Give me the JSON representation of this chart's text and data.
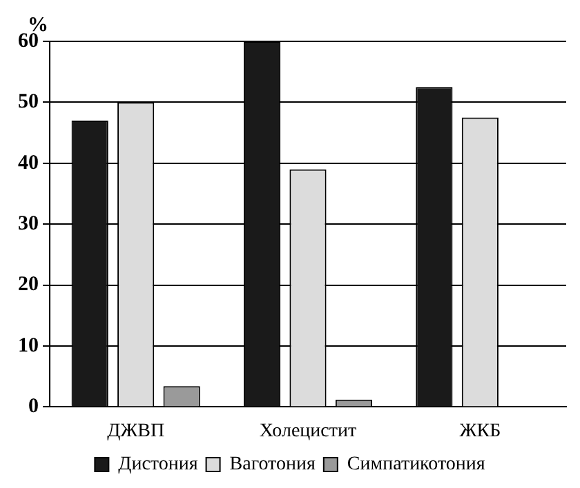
{
  "chart_data": {
    "type": "bar",
    "ylabel": "%",
    "categories": [
      "ДЖВП",
      "Холецистит",
      "ЖКБ"
    ],
    "series": [
      {
        "name": "Дистония",
        "color": "#1a1a1a",
        "values": [
          47,
          60,
          52.5
        ]
      },
      {
        "name": "Ваготония",
        "color": "#dcdcdc",
        "values": [
          50,
          39,
          47.5
        ]
      },
      {
        "name": "Симпатикотония",
        "color": "#9a9a9a",
        "values": [
          3.4,
          1.2,
          null
        ]
      }
    ],
    "ylim": [
      0,
      60
    ],
    "yticks": [
      0,
      10,
      20,
      30,
      40,
      50,
      60
    ],
    "grid": "y",
    "legend": "bottom"
  }
}
